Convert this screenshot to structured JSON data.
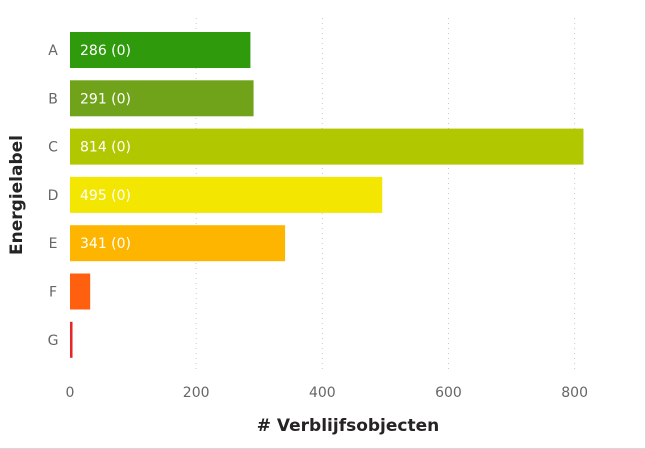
{
  "chart_data": {
    "type": "bar",
    "orientation": "horizontal",
    "xlabel": "# Verblijfsobjecten",
    "ylabel": "Energielabel",
    "xlim": [
      0,
      850
    ],
    "xticks": [
      0,
      200,
      400,
      600,
      800
    ],
    "grid": true,
    "categories": [
      "A",
      "B",
      "C",
      "D",
      "E",
      "F",
      "G"
    ],
    "values": [
      286,
      291,
      814,
      495,
      341,
      32,
      4
    ],
    "data_labels": [
      "286 (0)",
      "291 (0)",
      "814 (0)",
      "495 (0)",
      "341 (0)",
      "",
      ""
    ],
    "colors": [
      "#2f9a0b",
      "#70a31a",
      "#b1c700",
      "#f3e600",
      "#fdb500",
      "#fe6010",
      "#e52727"
    ]
  }
}
